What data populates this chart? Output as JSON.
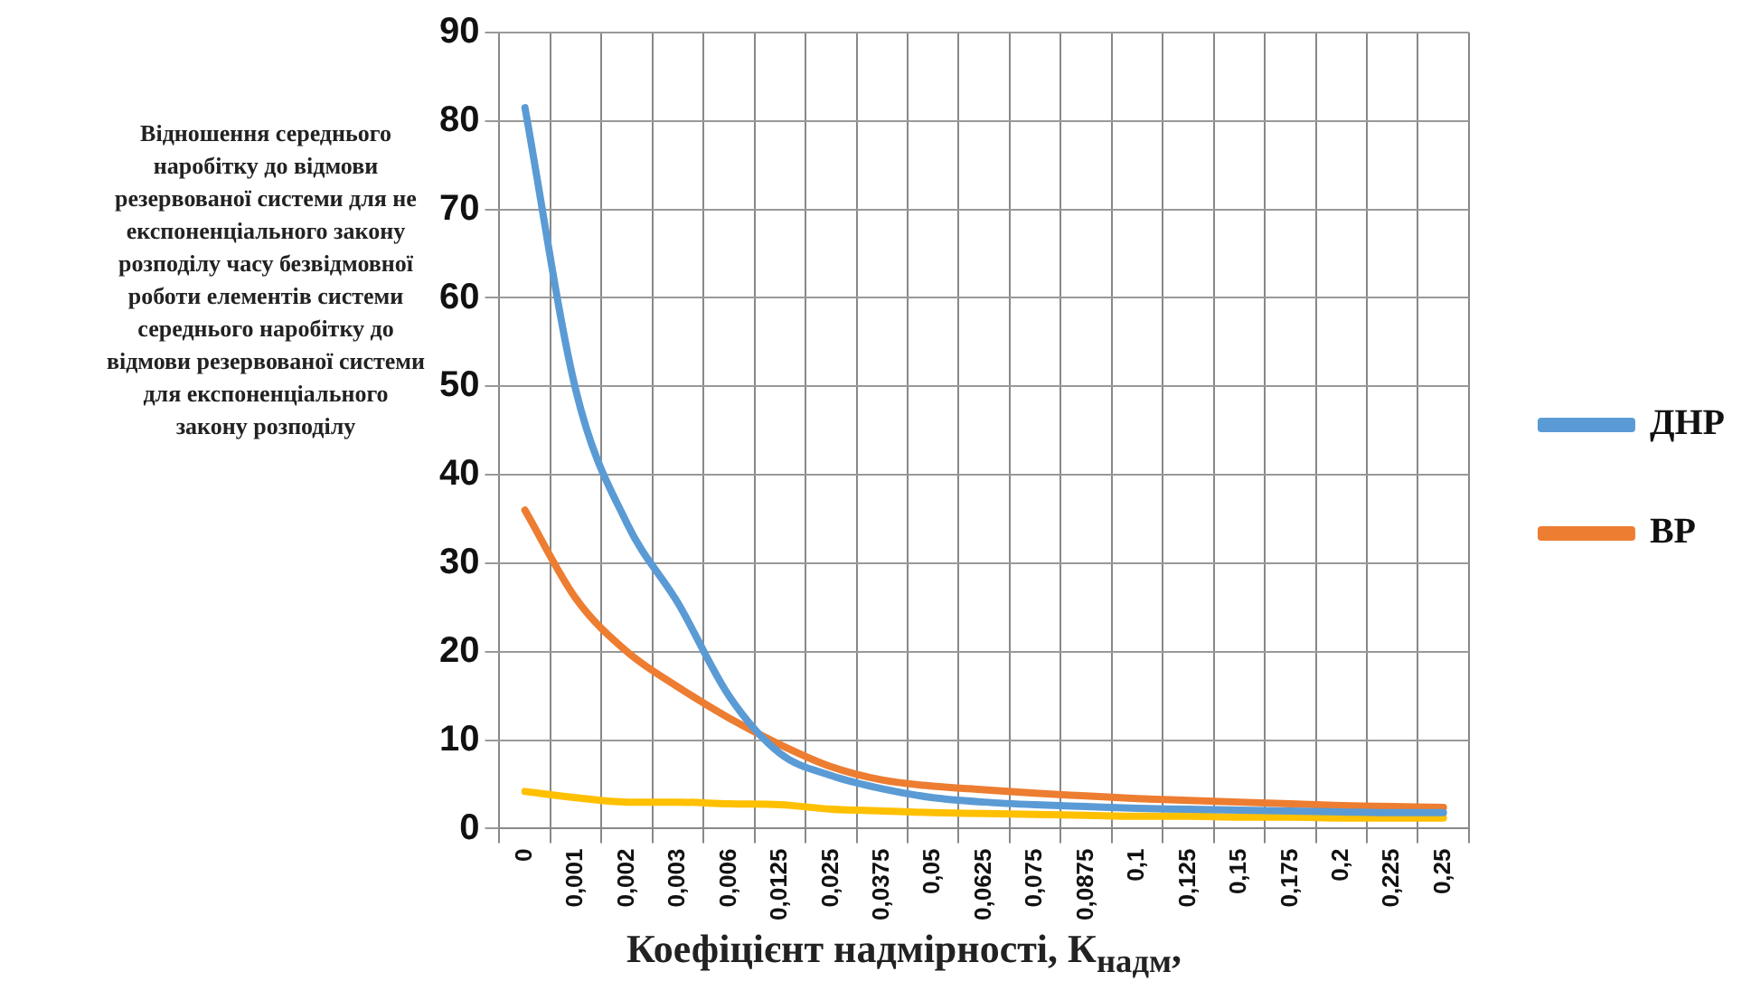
{
  "chart_data": {
    "type": "line",
    "ylabel": "Відношення середнього наробітку до відмови резервованої системи для не експоненціального закону розподілу часу безвідмовної роботи елементів системи середнього наробітку до відмови резервованої системи для експоненціального закону розподілу",
    "xlabel": "Коефіцієнт надмірності, К$_{надм}$,",
    "categories": [
      "0",
      "0,001",
      "0,002",
      "0,003",
      "0,006",
      "0,0125",
      "0,025",
      "0,0375",
      "0,05",
      "0,0625",
      "0,075",
      "0,0875",
      "0,1",
      "0,125",
      "0,15",
      "0,175",
      "0,2",
      "0,225",
      "0,25"
    ],
    "series": [
      {
        "name": "ДНР",
        "color": "#5b9bd5",
        "values": [
          81.5,
          49.5,
          34.5,
          25.5,
          15,
          8.5,
          6,
          4.5,
          3.5,
          3,
          2.7,
          2.5,
          2.3,
          2.2,
          2.1,
          2,
          1.9,
          1.8,
          1.8
        ]
      },
      {
        "name": "ВР",
        "color": "#ed7d31",
        "values": [
          36,
          26,
          20,
          16,
          12.5,
          9.5,
          7,
          5.5,
          4.8,
          4.4,
          4,
          3.7,
          3.4,
          3.2,
          3,
          2.8,
          2.6,
          2.5,
          2.4
        ]
      },
      {
        "color": "#ffc000",
        "values": [
          4.2,
          3.5,
          3,
          3,
          2.8,
          2.7,
          2.2,
          2,
          1.8,
          1.7,
          1.6,
          1.5,
          1.4,
          1.4,
          1.3,
          1.3,
          1.2,
          1.2,
          1.2
        ]
      }
    ],
    "ylim": [
      0,
      90
    ],
    "yticks": [
      0,
      10,
      20,
      30,
      40,
      50,
      60,
      70,
      80,
      90
    ],
    "grid": true,
    "legend": "right",
    "marker": "none",
    "line_style": "solid"
  }
}
